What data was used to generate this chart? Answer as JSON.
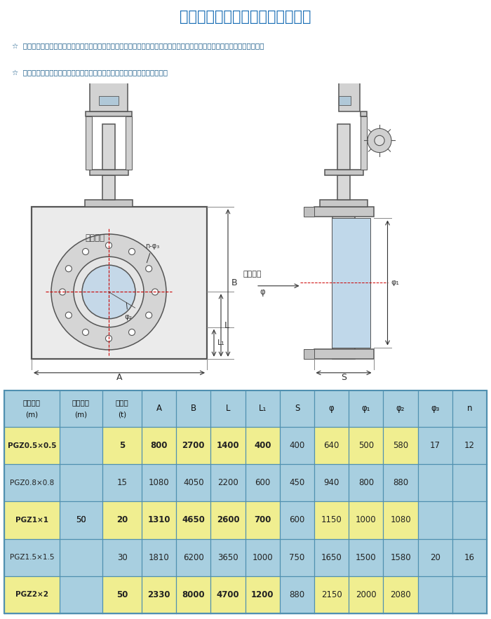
{
  "title": "机闸一体高压密封箱式闸门启闭机",
  "title_color": "#1a6eb5",
  "bg_color": "#ffffff",
  "desc_lines": [
    "☆  本闸门为高水头封闭闸门，适用于电站、放水洞、地下管道、城防设施。可代替高压闸阀和球阀，不用橡胶止水，封闭严密。",
    "☆  可根据用户提供的水头、出水口的大小，为用户设计制造不同规格的闸门。"
  ],
  "desc_color": "#1a5c8a",
  "table_header": [
    "闸门规格\n(m)",
    "适用水头\n(m)",
    "启门力\n(t)",
    "A",
    "B",
    "L",
    "L₁",
    "S",
    "φ",
    "φ₁",
    "φ₂",
    "φ₃",
    "n"
  ],
  "table_data": [
    [
      "PGZ0.5×0.5",
      "",
      "5",
      "800",
      "2700",
      "1400",
      "400",
      "400",
      "640",
      "500",
      "580",
      "17",
      "12"
    ],
    [
      "PGZ0.8×0.8",
      "",
      "15",
      "1080",
      "4050",
      "2200",
      "600",
      "450",
      "940",
      "800",
      "880",
      "",
      ""
    ],
    [
      "PGZ1×1",
      "50",
      "20",
      "1310",
      "4650",
      "2600",
      "700",
      "600",
      "1150",
      "1000",
      "1080",
      "",
      ""
    ],
    [
      "PGZ1.5×1.5",
      "",
      "30",
      "1810",
      "6200",
      "3650",
      "1000",
      "750",
      "1650",
      "1500",
      "1580",
      "20",
      "16"
    ],
    [
      "PGZ2×2",
      "",
      "50",
      "2330",
      "8000",
      "4700",
      "1200",
      "880",
      "2150",
      "2000",
      "2080",
      "",
      ""
    ]
  ],
  "yellow_rows": [
    0,
    2,
    4
  ],
  "table_bg": "#a8cfe0",
  "row_yellow": "#f0ee90",
  "row_blue": "#a8cfe0",
  "header_bg": "#a8cfe0",
  "line_color": "#5090b0",
  "diagram_bg": "#ffffff",
  "diagram_color": "#555555",
  "water_label": "水流方向",
  "core_label": "核心制造"
}
